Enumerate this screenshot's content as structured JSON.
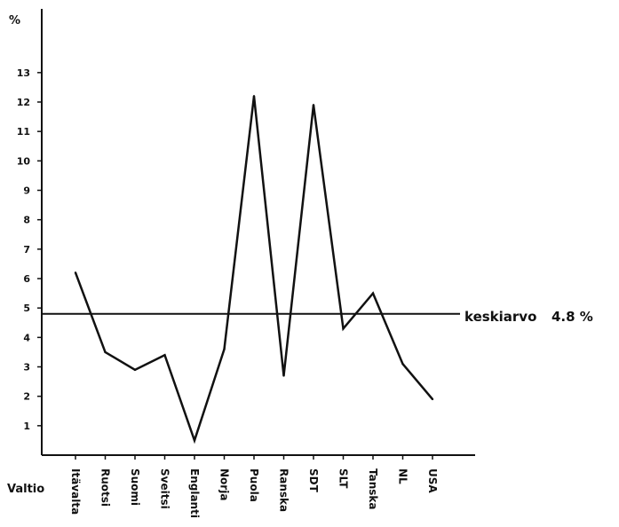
{
  "chart_data": {
    "type": "line",
    "title": "",
    "ylabel": "%",
    "xlabel": "Valtio",
    "ylim": [
      0,
      14.5
    ],
    "yticks": [
      "1",
      "2",
      "3",
      "4",
      "5",
      "6",
      "7",
      "8",
      "9",
      "10",
      "11",
      "12",
      "13"
    ],
    "categories": [
      "Itävalta",
      "Ruotsi",
      "Suomi",
      "Sveitsi",
      "Englanti",
      "Norja",
      "Puola",
      "Ranska",
      "SDT",
      "SLT",
      "Tanska",
      "NL",
      "USA"
    ],
    "series": [
      {
        "values": [
          6.2,
          3.5,
          2.9,
          3.4,
          0.5,
          3.6,
          12.2,
          2.7,
          11.9,
          4.3,
          5.5,
          3.1,
          1.9
        ]
      }
    ],
    "reference_line": {
      "value": 4.8,
      "label": "keskiarvo",
      "value_label": "4.8 %"
    },
    "grid": false,
    "legend": "none"
  },
  "colors": {
    "line": "#111111",
    "background": "#ffffff"
  }
}
